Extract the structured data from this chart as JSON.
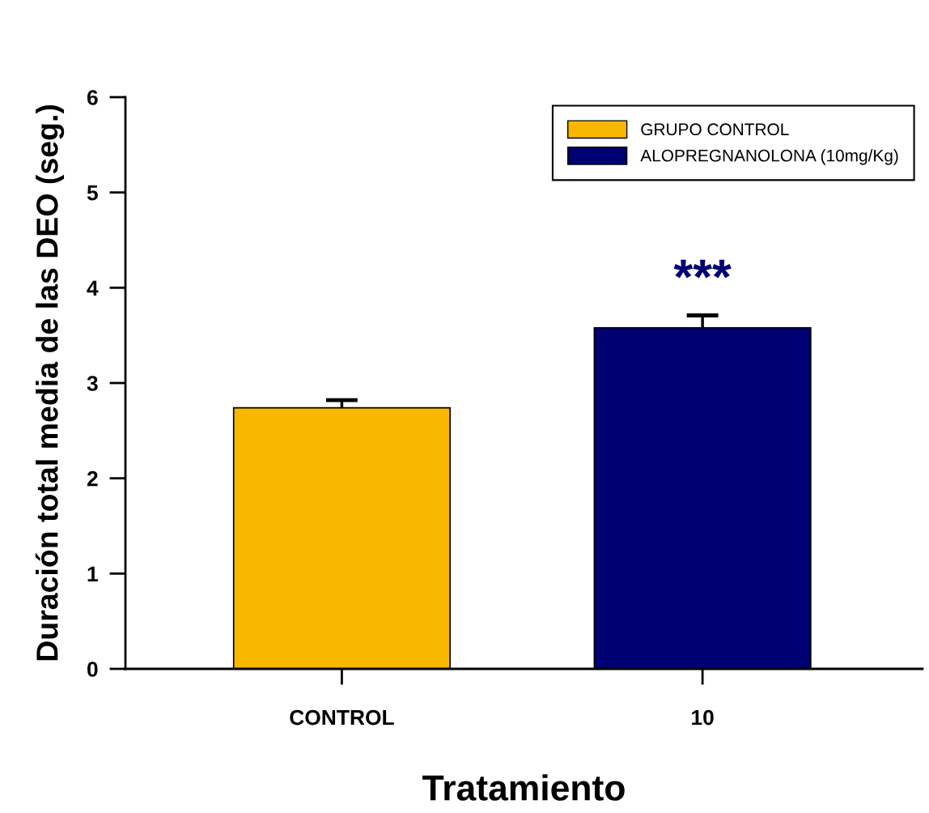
{
  "chart_data": {
    "type": "bar",
    "xlabel": "Tratamiento",
    "ylabel": "Duración total media de las DEO (seg.)",
    "categories": [
      "CONTROL",
      "10"
    ],
    "series": [
      {
        "name": "GRUPO CONTROL",
        "color": "#fab700",
        "values": [
          2.74,
          null
        ],
        "errors": [
          [
            2.74,
            2.82
          ],
          null
        ]
      },
      {
        "name": "ALOPREGNANOLONA (10mg/Kg)",
        "color": "#000073",
        "values": [
          null,
          3.58
        ],
        "errors": [
          null,
          [
            3.58,
            3.71
          ]
        ]
      }
    ],
    "annotations": [
      "***"
    ],
    "ylim": [
      0,
      6
    ],
    "yticks": [
      0,
      1,
      2,
      3,
      4,
      5,
      6
    ],
    "grid": false,
    "legend": "top right"
  }
}
